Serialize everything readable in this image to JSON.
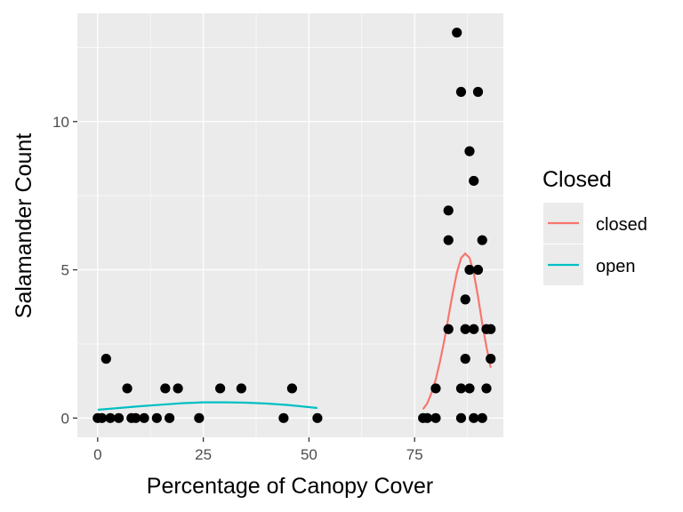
{
  "chart_data": {
    "type": "scatter",
    "xlabel": "Percentage of Canopy Cover",
    "ylabel": "Salamander Count",
    "xlim": [
      -4.8,
      96.0
    ],
    "ylim": [
      -0.65,
      13.65
    ],
    "x_ticks": [
      0,
      25,
      50,
      75
    ],
    "y_ticks": [
      0,
      5,
      10
    ],
    "grid": true,
    "legend": {
      "title": "Closed",
      "placement": "right",
      "entries": [
        {
          "label": "closed",
          "color": "#F8766D"
        },
        {
          "label": "open",
          "color": "#00BFC4"
        }
      ]
    },
    "points": [
      {
        "x": 0,
        "y": 0
      },
      {
        "x": 1,
        "y": 0
      },
      {
        "x": 2,
        "y": 2
      },
      {
        "x": 3,
        "y": 0
      },
      {
        "x": 5,
        "y": 0
      },
      {
        "x": 7,
        "y": 1
      },
      {
        "x": 8,
        "y": 0
      },
      {
        "x": 9,
        "y": 0
      },
      {
        "x": 11,
        "y": 0
      },
      {
        "x": 14,
        "y": 0
      },
      {
        "x": 16,
        "y": 1
      },
      {
        "x": 17,
        "y": 0
      },
      {
        "x": 19,
        "y": 1
      },
      {
        "x": 24,
        "y": 0
      },
      {
        "x": 29,
        "y": 1
      },
      {
        "x": 34,
        "y": 1
      },
      {
        "x": 44,
        "y": 0
      },
      {
        "x": 46,
        "y": 1
      },
      {
        "x": 52,
        "y": 0
      },
      {
        "x": 77,
        "y": 0
      },
      {
        "x": 78,
        "y": 0
      },
      {
        "x": 80,
        "y": 0
      },
      {
        "x": 80,
        "y": 1
      },
      {
        "x": 83,
        "y": 7
      },
      {
        "x": 83,
        "y": 6
      },
      {
        "x": 83,
        "y": 3
      },
      {
        "x": 85,
        "y": 13
      },
      {
        "x": 86,
        "y": 11
      },
      {
        "x": 86,
        "y": 1
      },
      {
        "x": 86,
        "y": 0
      },
      {
        "x": 87,
        "y": 4
      },
      {
        "x": 87,
        "y": 3
      },
      {
        "x": 87,
        "y": 2
      },
      {
        "x": 88,
        "y": 9
      },
      {
        "x": 88,
        "y": 5
      },
      {
        "x": 88,
        "y": 1
      },
      {
        "x": 89,
        "y": 8
      },
      {
        "x": 89,
        "y": 3
      },
      {
        "x": 89,
        "y": 0
      },
      {
        "x": 90,
        "y": 11
      },
      {
        "x": 90,
        "y": 5
      },
      {
        "x": 91,
        "y": 6
      },
      {
        "x": 91,
        "y": 0
      },
      {
        "x": 92,
        "y": 3
      },
      {
        "x": 92,
        "y": 1
      },
      {
        "x": 93,
        "y": 3
      },
      {
        "x": 93,
        "y": 2
      }
    ],
    "series": [
      {
        "name": "open",
        "color": "#00BFC4",
        "x": [
          0,
          5,
          10,
          15,
          20,
          25,
          30,
          35,
          40,
          45,
          50,
          52
        ],
        "y": [
          0.28,
          0.34,
          0.4,
          0.45,
          0.5,
          0.53,
          0.53,
          0.52,
          0.49,
          0.44,
          0.37,
          0.34
        ]
      },
      {
        "name": "closed",
        "color": "#F8766D",
        "x": [
          77,
          78,
          79,
          80,
          81,
          82,
          83,
          84,
          85,
          86,
          87,
          88,
          89,
          90,
          91,
          92,
          93
        ],
        "y": [
          0.3,
          0.5,
          0.85,
          1.3,
          1.9,
          2.6,
          3.4,
          4.2,
          4.9,
          5.4,
          5.55,
          5.4,
          4.9,
          4.1,
          3.2,
          2.4,
          1.7
        ]
      }
    ]
  }
}
